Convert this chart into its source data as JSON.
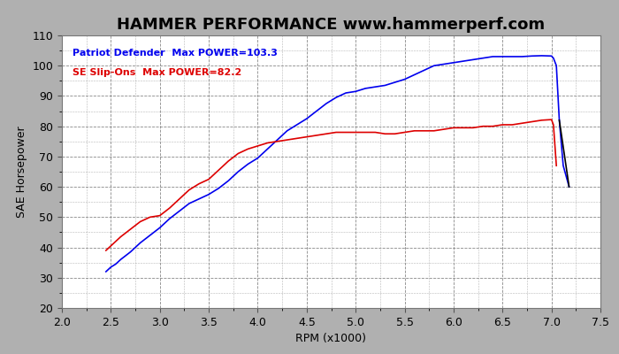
{
  "title": "HAMMER PERFORMANCE www.hammerperf.com",
  "xlabel": "RPM (x1000)",
  "ylabel": "SAE Horsepower",
  "xlim": [
    2.0,
    7.5
  ],
  "ylim": [
    20,
    110
  ],
  "xticks": [
    2.0,
    2.5,
    3.0,
    3.5,
    4.0,
    4.5,
    5.0,
    5.5,
    6.0,
    6.5,
    7.0,
    7.5
  ],
  "yticks": [
    20,
    30,
    40,
    50,
    60,
    70,
    80,
    90,
    100,
    110
  ],
  "background_color": "#b0b0b0",
  "plot_bg_color": "#ffffff",
  "grid_color": "#888888",
  "blue_label": "Patriot Defender  Max POWER=103.3",
  "red_label": "SE Slip-Ons  Max POWER=82.2",
  "blue_color": "#0000ee",
  "red_color": "#dd0000",
  "blue_x": [
    2.45,
    2.5,
    2.55,
    2.6,
    2.7,
    2.8,
    2.9,
    3.0,
    3.1,
    3.2,
    3.3,
    3.4,
    3.5,
    3.6,
    3.7,
    3.8,
    3.9,
    4.0,
    4.1,
    4.2,
    4.3,
    4.4,
    4.5,
    4.6,
    4.7,
    4.8,
    4.9,
    5.0,
    5.1,
    5.2,
    5.3,
    5.4,
    5.5,
    5.6,
    5.7,
    5.8,
    5.9,
    6.0,
    6.1,
    6.2,
    6.3,
    6.4,
    6.5,
    6.6,
    6.7,
    6.8,
    6.9,
    7.0,
    7.02,
    7.05,
    7.08,
    7.12,
    7.18
  ],
  "blue_y": [
    32.0,
    33.5,
    34.5,
    36.0,
    38.5,
    41.5,
    44.0,
    46.5,
    49.5,
    52.0,
    54.5,
    56.0,
    57.5,
    59.5,
    62.0,
    65.0,
    67.5,
    69.5,
    72.5,
    75.5,
    78.5,
    80.5,
    82.5,
    85.0,
    87.5,
    89.5,
    91.0,
    91.5,
    92.5,
    93.0,
    93.5,
    94.5,
    95.5,
    97.0,
    98.5,
    100.0,
    100.5,
    101.0,
    101.5,
    102.0,
    102.5,
    103.0,
    103.0,
    103.0,
    103.0,
    103.2,
    103.3,
    103.2,
    102.5,
    100.0,
    82.0,
    67.0,
    60.0
  ],
  "red_x": [
    2.45,
    2.5,
    2.6,
    2.7,
    2.8,
    2.9,
    3.0,
    3.1,
    3.2,
    3.3,
    3.4,
    3.5,
    3.6,
    3.7,
    3.8,
    3.9,
    4.0,
    4.1,
    4.2,
    4.3,
    4.4,
    4.5,
    4.6,
    4.7,
    4.8,
    4.9,
    5.0,
    5.1,
    5.2,
    5.3,
    5.4,
    5.5,
    5.6,
    5.7,
    5.8,
    5.9,
    6.0,
    6.1,
    6.2,
    6.3,
    6.4,
    6.5,
    6.6,
    6.7,
    6.8,
    6.9,
    7.0,
    7.02,
    7.05
  ],
  "red_y": [
    39.0,
    40.5,
    43.5,
    46.0,
    48.5,
    50.0,
    50.5,
    53.0,
    56.0,
    59.0,
    61.0,
    62.5,
    65.5,
    68.5,
    71.0,
    72.5,
    73.5,
    74.5,
    75.0,
    75.5,
    76.0,
    76.5,
    77.0,
    77.5,
    78.0,
    78.0,
    78.0,
    78.0,
    78.0,
    77.5,
    77.5,
    78.0,
    78.5,
    78.5,
    78.5,
    79.0,
    79.5,
    79.5,
    79.5,
    80.0,
    80.0,
    80.5,
    80.5,
    81.0,
    81.5,
    82.0,
    82.2,
    80.5,
    67.0
  ],
  "title_fontsize": 13,
  "axis_label_fontsize": 9,
  "tick_fontsize": 9,
  "linewidth": 1.2
}
